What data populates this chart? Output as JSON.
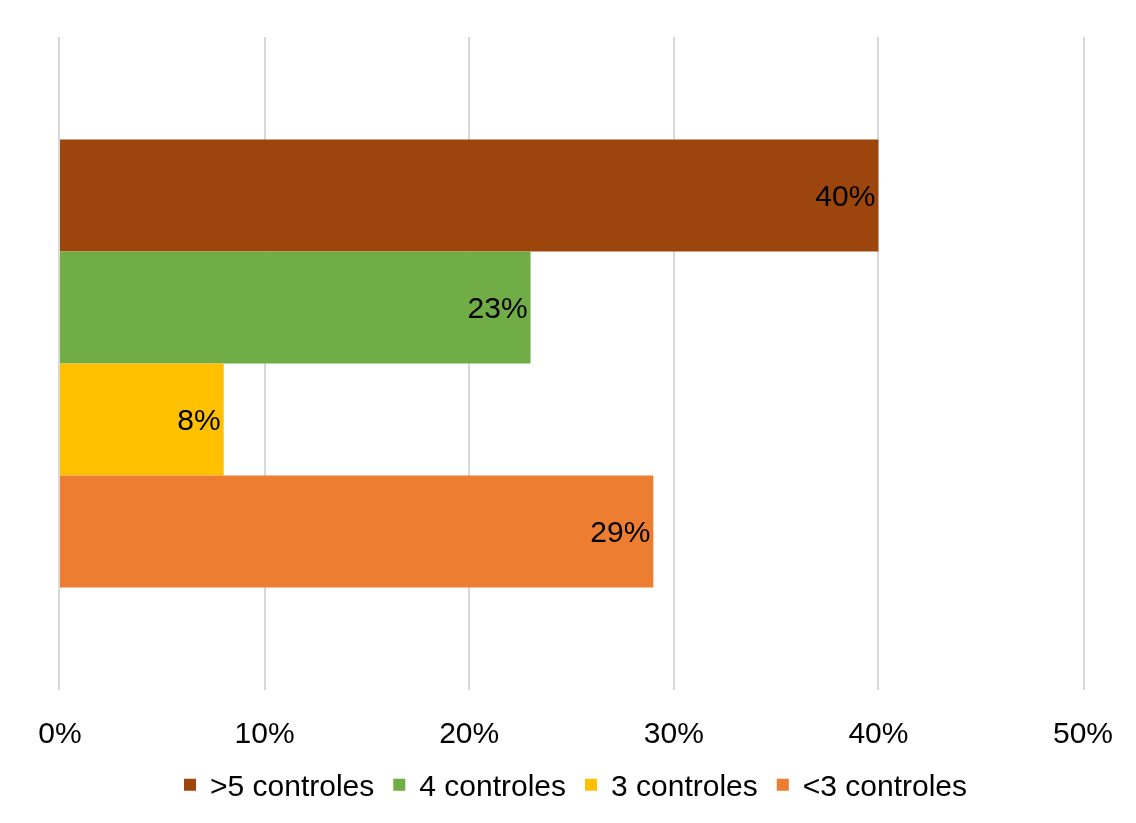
{
  "chart_data": {
    "type": "bar",
    "orientation": "horizontal",
    "categories": [
      null
    ],
    "series": [
      {
        "name": ">5 controles",
        "color": "#9c460d",
        "values": [
          40
        ],
        "value_labels": [
          "40%"
        ]
      },
      {
        "name": "4 controles",
        "color": "#70ad47",
        "values": [
          23
        ],
        "value_labels": [
          "23%"
        ]
      },
      {
        "name": "3 controles",
        "color": "#ffc000",
        "values": [
          8
        ],
        "value_labels": [
          "8%"
        ]
      },
      {
        "name": "<3 controles",
        "color": "#ed7d31",
        "values": [
          29
        ],
        "value_labels": [
          "29%"
        ]
      }
    ],
    "xlim": [
      0,
      50
    ],
    "xticks": [
      {
        "value": 0,
        "label": "0%"
      },
      {
        "value": 10,
        "label": "10%"
      },
      {
        "value": 20,
        "label": "20%"
      },
      {
        "value": 30,
        "label": "30%"
      },
      {
        "value": 40,
        "label": "40%"
      },
      {
        "value": 50,
        "label": "50%"
      }
    ],
    "grid": "x",
    "legend": "bottom"
  }
}
